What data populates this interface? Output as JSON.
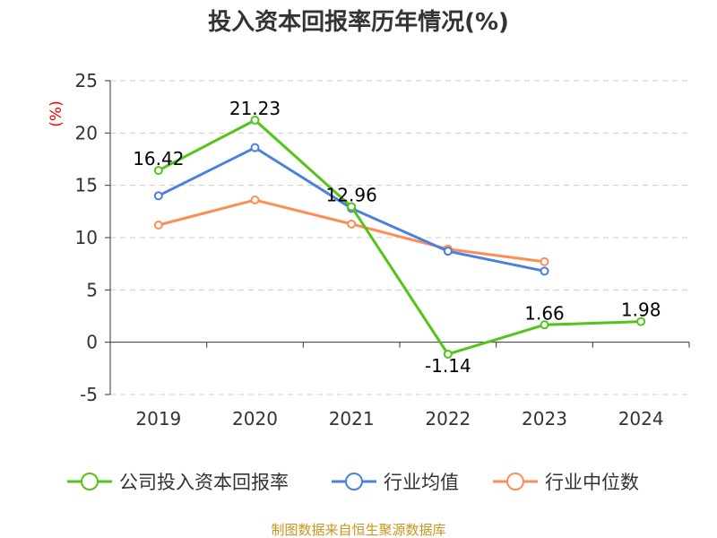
{
  "chart_data": {
    "type": "line",
    "title": "投入资本回报率历年情况(%)",
    "ylabel": "(%)",
    "xlabel": "",
    "categories": [
      "2019",
      "2020",
      "2021",
      "2022",
      "2023",
      "2024"
    ],
    "ylim": [
      -5,
      25
    ],
    "yticks": [
      25,
      20,
      15,
      10,
      5,
      0,
      -5
    ],
    "grid": true,
    "legend_position": "bottom",
    "series": [
      {
        "name": "公司投入资本回报率",
        "color": "#52c41a",
        "values": [
          16.42,
          21.23,
          12.96,
          -1.14,
          1.66,
          1.98
        ],
        "labels": [
          "16.42",
          "21.23",
          "12.96",
          "-1.14",
          "1.66",
          "1.98"
        ]
      },
      {
        "name": "行业均值",
        "color": "#4a80e0",
        "values": [
          14.0,
          18.6,
          12.8,
          8.7,
          6.8,
          null
        ]
      },
      {
        "name": "行业中位数",
        "color": "#ff8c55",
        "values": [
          11.2,
          13.6,
          11.3,
          8.9,
          7.7,
          null
        ]
      }
    ]
  },
  "source": "制图数据来自恒生聚源数据库"
}
